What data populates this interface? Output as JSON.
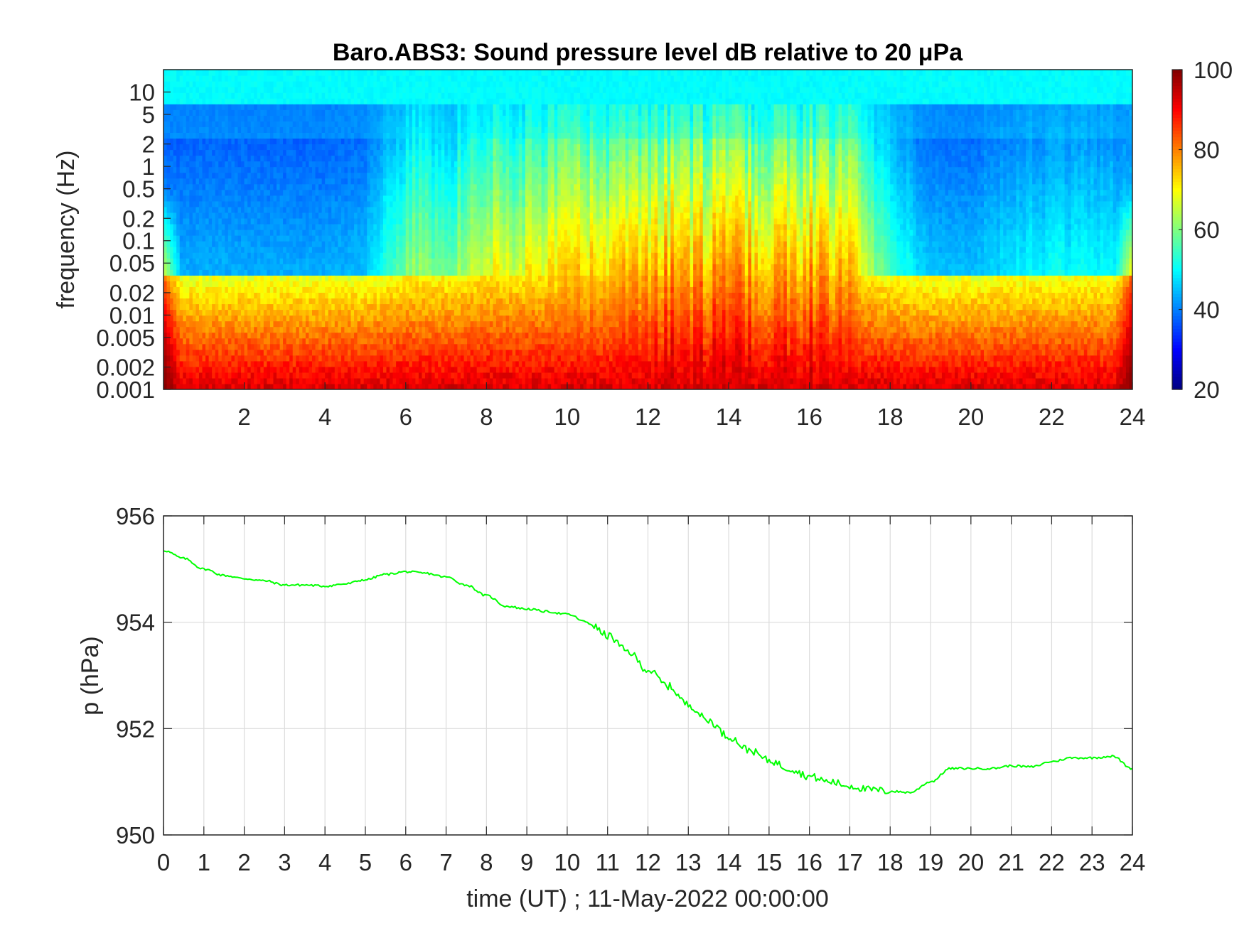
{
  "chart_data": [
    {
      "type": "heatmap",
      "title": "Baro.ABS3: Sound pressure level dB relative to 20 μPa",
      "ylabel": "frequency (Hz)",
      "xlabel": "",
      "x_ticks": [
        "2",
        "4",
        "6",
        "8",
        "10",
        "12",
        "14",
        "16",
        "18",
        "20",
        "22",
        "24"
      ],
      "y_ticks": [
        "10",
        "5",
        "2",
        "1",
        "0.5",
        "0.2",
        "0.1",
        "0.05",
        "0.02",
        "0.01",
        "0.005",
        "0.002",
        "0.001"
      ],
      "xlim": [
        0,
        24
      ],
      "ylim": [
        0.001,
        20
      ],
      "y_scale": "log",
      "colormap": "jet",
      "colorbar": {
        "ticks": [
          "100",
          "80",
          "60",
          "40",
          "20"
        ],
        "range": [
          20,
          100
        ]
      },
      "band_levels_db": {
        "high_freq_above_5Hz": 48,
        "quiet_period_mid_freq": [
          30,
          45
        ],
        "active_period_mid_freq": [
          65,
          92
        ],
        "low_freq_below_0.005Hz": [
          75,
          95
        ]
      },
      "activity_profile": {
        "hours": [
          0,
          1,
          2,
          3,
          4,
          5,
          6,
          7,
          8,
          9,
          10,
          11,
          12,
          13,
          14,
          15,
          16,
          17,
          18,
          19,
          20,
          21,
          22,
          23,
          24
        ],
        "relative_level": [
          0.05,
          0.05,
          0.05,
          0.05,
          0.05,
          0.1,
          0.55,
          0.5,
          0.75,
          0.8,
          0.85,
          0.95,
          1.0,
          1.0,
          1.0,
          1.0,
          1.0,
          0.95,
          0.35,
          0.1,
          0.1,
          0.2,
          0.25,
          0.25,
          0.2
        ]
      }
    },
    {
      "type": "line",
      "title": "",
      "xlabel": "time (UT) ; 11-May-2022 00:00:00",
      "ylabel": "p (hPa)",
      "xlim": [
        0,
        24
      ],
      "ylim": [
        950,
        956
      ],
      "x_ticks": [
        "0",
        "1",
        "2",
        "3",
        "4",
        "5",
        "6",
        "7",
        "8",
        "9",
        "10",
        "11",
        "12",
        "13",
        "14",
        "15",
        "16",
        "17",
        "18",
        "19",
        "20",
        "21",
        "22",
        "23",
        "24"
      ],
      "y_ticks": [
        "956",
        "954",
        "952",
        "950"
      ],
      "grid": true,
      "line_color": "#00ff00",
      "series": [
        {
          "x": [
            0,
            0.5,
            1,
            1.5,
            2,
            2.5,
            3,
            3.5,
            4,
            4.5,
            5,
            5.5,
            6,
            6.5,
            7,
            7.5,
            8,
            8.5,
            9,
            9.5,
            10,
            10.5,
            11,
            11.5,
            12,
            12.5,
            13,
            13.5,
            14,
            14.5,
            15,
            15.5,
            16,
            16.5,
            17,
            17.5,
            18,
            18.5,
            19,
            19.5,
            20,
            20.5,
            21,
            21.5,
            22,
            22.5,
            23,
            23.5,
            24
          ],
          "y": [
            955.35,
            955.2,
            955.0,
            954.88,
            954.82,
            954.78,
            954.7,
            954.7,
            954.68,
            954.72,
            954.8,
            954.9,
            954.95,
            954.92,
            954.85,
            954.7,
            954.5,
            954.3,
            954.25,
            954.2,
            954.15,
            954.0,
            953.75,
            953.45,
            953.1,
            952.8,
            952.45,
            952.15,
            951.85,
            951.6,
            951.4,
            951.25,
            951.1,
            951.0,
            950.92,
            950.85,
            950.82,
            950.8,
            951.0,
            951.25,
            951.25,
            951.25,
            951.3,
            951.28,
            951.38,
            951.45,
            951.45,
            951.48,
            951.25
          ]
        }
      ]
    }
  ]
}
